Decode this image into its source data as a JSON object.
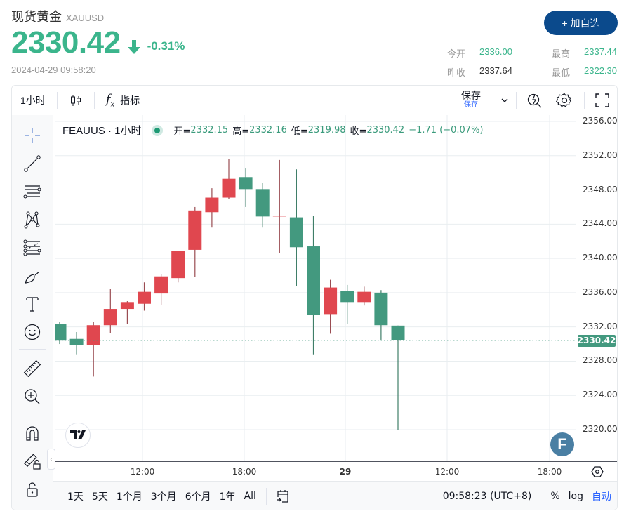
{
  "header": {
    "title": "现货黄金",
    "symbol": "XAUUSD",
    "price": "2330.42",
    "change_pct": "-0.31%",
    "timestamp": "2024-04-29 09:58:20",
    "add_watchlist_label": "+ 加自选",
    "stats": {
      "open_label": "今开",
      "open_value": "2336.00",
      "prev_close_label": "昨收",
      "prev_close_value": "2337.64",
      "high_label": "最高",
      "high_value": "2337.44",
      "low_label": "最低",
      "low_value": "2322.30"
    }
  },
  "toolbar": {
    "interval": "1小时",
    "chart_type_icon": "candlestick-icon",
    "indicators_label": "指标",
    "save_label": "保存",
    "save_sub_label": "保存"
  },
  "legend": {
    "symbol": "FEAUUS · 1小时",
    "open_key": "开=",
    "open": "2332.15",
    "high_key": "高=",
    "high": "2332.16",
    "low_key": "低=",
    "low": "2319.98",
    "close_key": "收=",
    "close": "2330.42",
    "change": "−1.71 (−0.07%)"
  },
  "price_axis": {
    "labels": [
      "2356.00",
      "2352.00",
      "2348.00",
      "2344.00",
      "2340.00",
      "2336.00",
      "2332.00",
      "2328.00",
      "2324.00",
      "2320.00"
    ],
    "last_price": "2330.42"
  },
  "time_axis": {
    "labels": [
      "12:00",
      "18:00",
      "29",
      "12:00",
      "18:00"
    ]
  },
  "bottombar": {
    "ranges": [
      "1天",
      "5天",
      "1个月",
      "3个月",
      "6个月",
      "1年",
      "All"
    ],
    "clock": "09:58:23 (UTC+8)",
    "percent_label": "%",
    "log_label": "log",
    "auto_label": "自动"
  },
  "colors": {
    "up": "#e0474f",
    "down": "#43997f",
    "accent": "#3bb58c",
    "button": "#0b4a8c"
  },
  "chart_data": {
    "type": "candlestick",
    "title": "FEAUUS · 1小时",
    "ylabel": "",
    "ylim": [
      2318,
      2357
    ],
    "x_ticks": [
      "12:00",
      "18:00",
      "29",
      "12:00",
      "18:00"
    ],
    "convention": "red=up, green=down",
    "candles": [
      {
        "o": 2332.3,
        "h": 2332.6,
        "l": 2330.0,
        "c": 2330.4
      },
      {
        "o": 2330.6,
        "h": 2331.4,
        "l": 2328.8,
        "c": 2329.9
      },
      {
        "o": 2329.9,
        "h": 2332.6,
        "l": 2326.2,
        "c": 2332.2
      },
      {
        "o": 2332.2,
        "h": 2336.4,
        "l": 2331.3,
        "c": 2334.1
      },
      {
        "o": 2334.1,
        "h": 2335.0,
        "l": 2332.3,
        "c": 2334.9
      },
      {
        "o": 2334.7,
        "h": 2337.2,
        "l": 2333.9,
        "c": 2336.1
      },
      {
        "o": 2335.9,
        "h": 2338.2,
        "l": 2334.6,
        "c": 2337.9
      },
      {
        "o": 2337.7,
        "h": 2340.9,
        "l": 2337.2,
        "c": 2340.9
      },
      {
        "o": 2341.0,
        "h": 2346.0,
        "l": 2337.8,
        "c": 2345.6
      },
      {
        "o": 2345.4,
        "h": 2348.2,
        "l": 2343.6,
        "c": 2347.1
      },
      {
        "o": 2347.1,
        "h": 2351.6,
        "l": 2346.9,
        "c": 2349.3
      },
      {
        "o": 2349.5,
        "h": 2350.5,
        "l": 2346.0,
        "c": 2348.1
      },
      {
        "o": 2348.1,
        "h": 2348.8,
        "l": 2343.6,
        "c": 2344.9
      },
      {
        "o": 2344.9,
        "h": 2351.5,
        "l": 2340.6,
        "c": 2345.0
      },
      {
        "o": 2344.8,
        "h": 2350.4,
        "l": 2336.8,
        "c": 2341.3
      },
      {
        "o": 2341.4,
        "h": 2345.0,
        "l": 2328.8,
        "c": 2333.4
      },
      {
        "o": 2333.5,
        "h": 2337.5,
        "l": 2331.2,
        "c": 2336.6
      },
      {
        "o": 2336.2,
        "h": 2336.9,
        "l": 2332.3,
        "c": 2334.9
      },
      {
        "o": 2334.9,
        "h": 2336.7,
        "l": 2334.5,
        "c": 2336.1
      },
      {
        "o": 2336.0,
        "h": 2336.3,
        "l": 2330.5,
        "c": 2332.2
      },
      {
        "o": 2332.15,
        "h": 2332.16,
        "l": 2319.98,
        "c": 2330.42
      }
    ]
  }
}
